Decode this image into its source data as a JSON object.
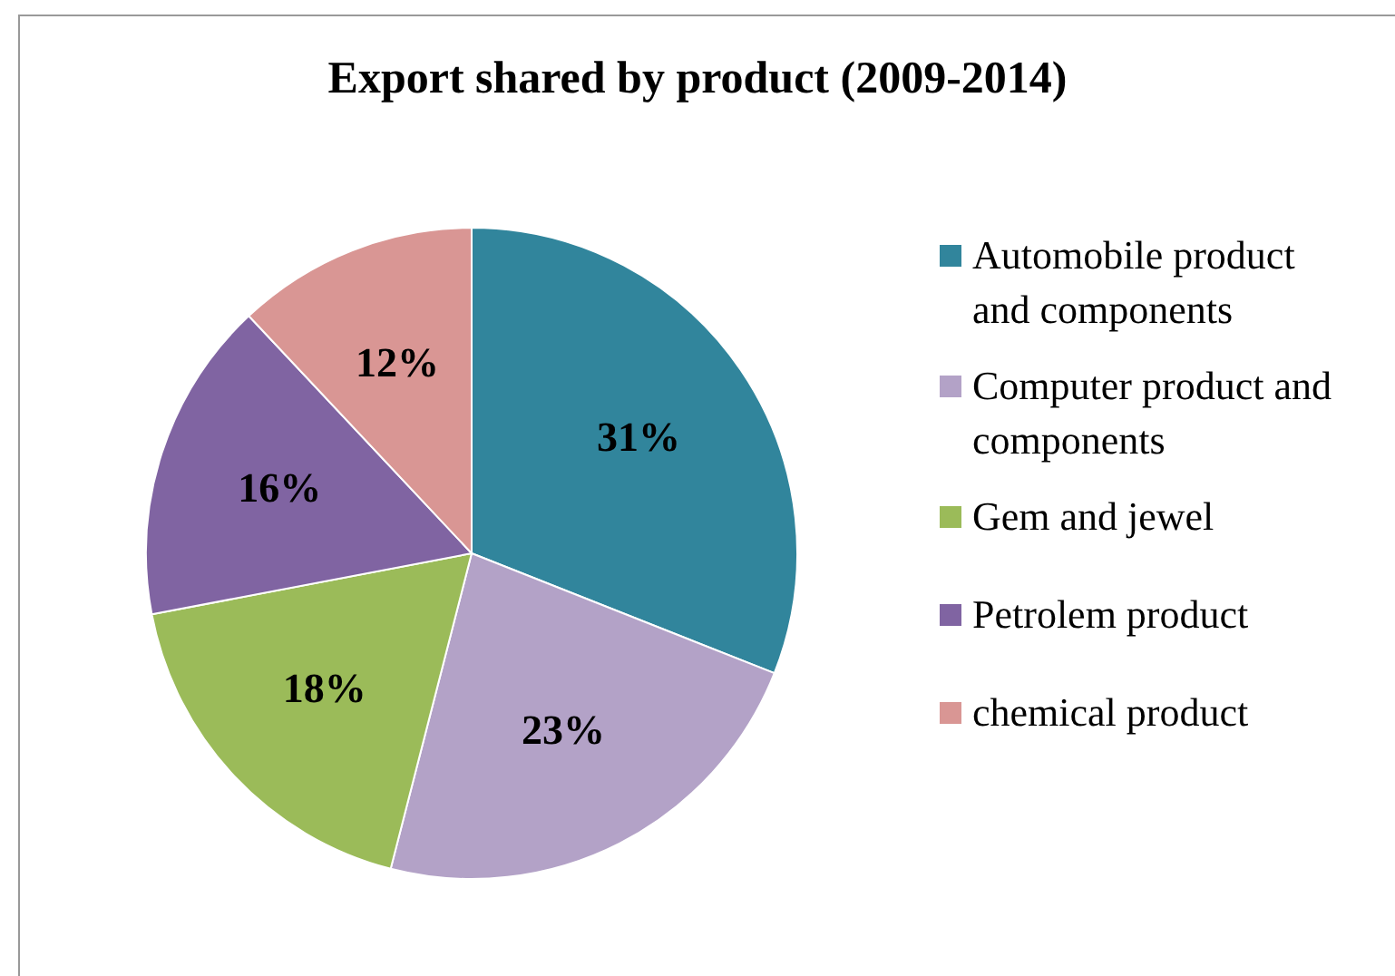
{
  "chart_data": {
    "type": "pie",
    "title": "Export shared by product (2009-2014)",
    "categories": [
      "Automobile product and components",
      "Computer product and components",
      "Gem and jewel",
      "Petrolem product",
      "chemical product"
    ],
    "values": [
      31,
      23,
      18,
      16,
      12
    ],
    "colors": [
      "#31859c",
      "#b3a2c7",
      "#9bbb59",
      "#8064a2",
      "#d99694"
    ],
    "value_labels": [
      "31%",
      "23%",
      "18%",
      "16%",
      "12%"
    ],
    "legend": "right"
  }
}
